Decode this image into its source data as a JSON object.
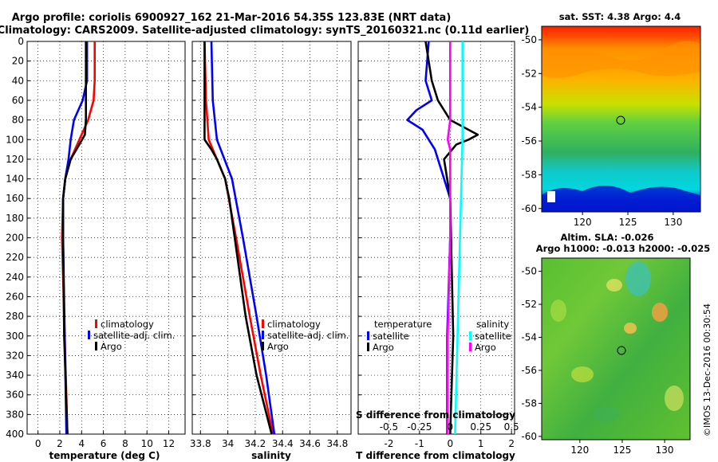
{
  "header": {
    "title_line1": "Argo profile: coriolis 6900927_162 21-Mar-2016 54.35S 123.83E (NRT data)",
    "title_line2": "Climatology: CARS2009. Satellite-adjusted climatology: synTS_20160321.nc (0.11d earlier)"
  },
  "colors": {
    "climatology": "#ff0000",
    "satellite_adj": "#0000ff",
    "argo": "#000000",
    "sat_salinity": "#00ffff",
    "argo_salinity": "#ff00ff"
  },
  "chart_data": [
    {
      "type": "line",
      "name": "temperature-profile",
      "xlabel": "temperature (deg C)",
      "ylabel": "depth",
      "xlim": [
        -1,
        13.5
      ],
      "ylim": [
        400,
        0
      ],
      "xticks": [
        0,
        2,
        4,
        6,
        8,
        10,
        12
      ],
      "yticks": [
        0,
        20,
        40,
        60,
        80,
        100,
        120,
        140,
        160,
        180,
        200,
        220,
        240,
        260,
        280,
        300,
        320,
        340,
        360,
        380,
        400
      ],
      "grid": true,
      "legend": [
        "climatology",
        "satellite-adj. clim.",
        "Argo"
      ],
      "series": [
        {
          "name": "climatology",
          "color": "#ff0000",
          "depth": [
            0,
            40,
            60,
            80,
            100,
            120,
            140,
            160,
            200,
            400
          ],
          "values": [
            5.2,
            5.2,
            5.1,
            4.6,
            3.8,
            3.0,
            2.5,
            2.3,
            2.2,
            2.7
          ]
        },
        {
          "name": "satellite-adj. clim.",
          "color": "#0000ff",
          "depth": [
            0,
            40,
            60,
            80,
            100,
            120,
            140,
            160,
            200,
            400
          ],
          "values": [
            4.5,
            4.5,
            4.1,
            3.3,
            3.0,
            2.8,
            2.5,
            2.3,
            2.3,
            2.6
          ]
        },
        {
          "name": "Argo",
          "color": "#000000",
          "depth": [
            0,
            40,
            60,
            80,
            95,
            105,
            120,
            140,
            160,
            200,
            300,
            400
          ],
          "values": [
            4.4,
            4.4,
            4.4,
            4.4,
            4.3,
            3.8,
            3.0,
            2.5,
            2.3,
            2.3,
            2.4,
            2.7
          ]
        }
      ]
    },
    {
      "type": "line",
      "name": "salinity-profile",
      "xlabel": "salinity",
      "ylabel": "depth",
      "xlim": [
        33.74,
        34.9
      ],
      "ylim": [
        400,
        0
      ],
      "xticks": [
        33.8,
        34,
        34.2,
        34.4,
        34.6,
        34.8
      ],
      "xtick_labels": [
        "33.8",
        "34",
        "34.2",
        "34.4",
        "34.6",
        "34.8"
      ],
      "grid": true,
      "legend": [
        "climatology",
        "satellite-adj. clim.",
        "Argo"
      ],
      "series": [
        {
          "name": "climatology",
          "color": "#ff0000",
          "depth": [
            0,
            60,
            100,
            140,
            200,
            280,
            340,
            400
          ],
          "values": [
            33.83,
            33.84,
            33.86,
            33.98,
            34.06,
            34.16,
            34.24,
            34.33
          ]
        },
        {
          "name": "satellite-adj. clim.",
          "color": "#0000ff",
          "depth": [
            0,
            60,
            100,
            140,
            200,
            280,
            340,
            400
          ],
          "values": [
            33.88,
            33.89,
            33.92,
            34.03,
            34.11,
            34.21,
            34.28,
            34.34
          ]
        },
        {
          "name": "Argo",
          "color": "#000000",
          "depth": [
            0,
            60,
            100,
            110,
            120,
            140,
            160,
            200,
            280,
            340,
            400
          ],
          "values": [
            33.83,
            33.83,
            33.83,
            33.88,
            33.92,
            33.98,
            34.01,
            34.05,
            34.13,
            34.21,
            34.32
          ]
        }
      ]
    },
    {
      "type": "line",
      "name": "difference-profile",
      "xlabel": "T difference from climatology",
      "xlabel_top": "S difference from climatology",
      "ylabel": "depth",
      "xlim": [
        -3,
        2.1
      ],
      "ylim": [
        400,
        0
      ],
      "xticks": [
        -2,
        -1,
        0,
        1,
        2
      ],
      "xticks_s": [
        "-0.5",
        "-0.25",
        "0",
        "0.25",
        "0.5"
      ],
      "grid": true,
      "legend_temperature_title": "temperature",
      "legend_salinity_title": "salinity",
      "legend": [
        "satellite",
        "Argo",
        "satellite",
        "Argo"
      ],
      "series": [
        {
          "name": "T satellite",
          "color": "#0000ff",
          "depth": [
            0,
            40,
            60,
            70,
            80,
            90,
            100,
            110,
            130,
            160,
            200,
            300,
            400
          ],
          "values": [
            -0.7,
            -0.8,
            -0.6,
            -1.1,
            -1.4,
            -0.9,
            -0.7,
            -0.5,
            -0.3,
            0.0,
            0.0,
            -0.1,
            -0.1
          ]
        },
        {
          "name": "T Argo",
          "color": "#000000",
          "depth": [
            0,
            40,
            60,
            80,
            95,
            100,
            105,
            120,
            140,
            160,
            300,
            400
          ],
          "values": [
            -0.8,
            -0.6,
            -0.4,
            0.0,
            0.9,
            0.6,
            0.2,
            -0.2,
            -0.1,
            0.0,
            0.1,
            0.0
          ]
        },
        {
          "name": "S satellite",
          "color": "#00ffff",
          "depth": [
            0,
            100,
            200,
            300,
            400
          ],
          "values": [
            0.1,
            0.1,
            0.08,
            0.06,
            0.04
          ]
        },
        {
          "name": "S Argo",
          "color": "#ff00ff",
          "depth": [
            0,
            80,
            100,
            110,
            160,
            200,
            300,
            400
          ],
          "values": [
            0.0,
            0.0,
            -0.02,
            0.0,
            0.0,
            0.0,
            -0.02,
            -0.02
          ]
        }
      ]
    }
  ],
  "maps": {
    "sst": {
      "title": "sat. SST: 4.38 Argo: 4.4",
      "yticks": [
        "-50",
        "-52",
        "-54",
        "-56",
        "-58",
        "-60"
      ],
      "xticks": [
        "120",
        "125",
        "130"
      ],
      "marker": {
        "lon": 123.83,
        "lat": -54.35
      }
    },
    "sla": {
      "title_line1": "Altim. SLA: -0.026",
      "title_line2": "Argo h1000: -0.013 h2000: -0.025",
      "yticks": [
        "-50",
        "-52",
        "-54",
        "-56",
        "-58",
        "-60"
      ],
      "xticks": [
        "120",
        "125",
        "130"
      ],
      "marker": {
        "lon": 123.83,
        "lat": -54.35
      }
    }
  },
  "footer": {
    "credit": "©IMOS 13-Dec-2016 00:30:54"
  }
}
